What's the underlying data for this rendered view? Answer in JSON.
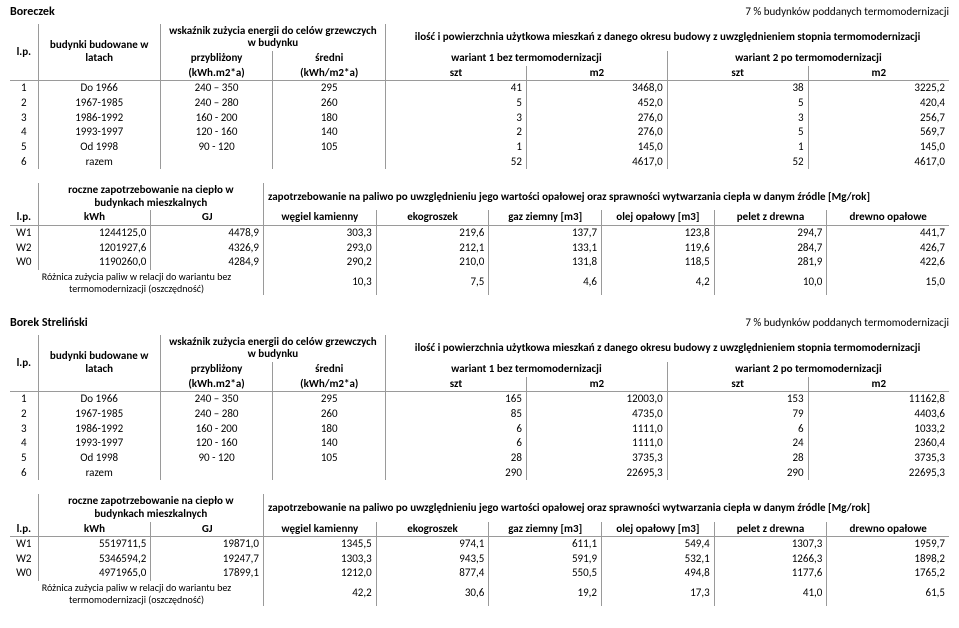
{
  "sections": [
    {
      "name": "Boreczek",
      "subtitle": "7 % budynków poddanych termomodernizacji",
      "table1": {
        "header_top_left": "budynki budowane w latach",
        "header_lp": "l.p.",
        "header_wsk": "wskaźnik zużycia energii do celów grzewczych w budynku",
        "header_ilosc": "ilość i powierzchnia użytkowa mieszkań z danego okresu budowy z uwzględnieniem stopnia termomodernizacji",
        "sub_przyb": "przybliżony",
        "sub_sredni": "średni",
        "sub_w1": "wariant 1 bez termomodernizacji",
        "sub_w2": "wariant 2 po termomodernizacji",
        "unit_kwh": "(kWh.m2*a)",
        "unit_kwhm": "(kWh/m2*a)",
        "unit_szt": "szt",
        "unit_m2": "m2",
        "rows": [
          {
            "lp": "1",
            "lat": "Do 1966",
            "przyb": "240 – 350",
            "sr": "295",
            "s1": "41",
            "m1": "3468,0",
            "s2": "38",
            "m2": "3225,2"
          },
          {
            "lp": "2",
            "lat": "1967-1985",
            "przyb": "240 – 280",
            "sr": "260",
            "s1": "5",
            "m1": "452,0",
            "s2": "5",
            "m2": "420,4"
          },
          {
            "lp": "3",
            "lat": "1986-1992",
            "przyb": "160 - 200",
            "sr": "180",
            "s1": "3",
            "m1": "276,0",
            "s2": "3",
            "m2": "256,7"
          },
          {
            "lp": "4",
            "lat": "1993-1997",
            "przyb": "120 - 160",
            "sr": "140",
            "s1": "2",
            "m1": "276,0",
            "s2": "5",
            "m2": "569,7"
          },
          {
            "lp": "5",
            "lat": "Od 1998",
            "przyb": "90 - 120",
            "sr": "105",
            "s1": "1",
            "m1": "145,0",
            "s2": "1",
            "m2": "145,0"
          },
          {
            "lp": "6",
            "lat": "razem",
            "przyb": "",
            "sr": "",
            "s1": "52",
            "m1": "4617,0",
            "s2": "52",
            "m2": "4617,0"
          }
        ]
      },
      "table2": {
        "h_roczne": "roczne zapotrzebowanie na ciepło w budynkach mieszkalnych",
        "h_zap": "zapotrzebowanie na paliwo po uwzględnieniu jego wartości opałowej oraz sprawności wytwarzania ciepła w danym źródle [Mg/rok]",
        "h_lp": "l.p.",
        "h_kwh": "kWh",
        "h_gj": "GJ",
        "h_wk": "węgiel kamienny",
        "h_eko": "ekogroszek",
        "h_gaz": "gaz ziemny [m3]",
        "h_ole": "olej opałowy [m3]",
        "h_pel": "pelet z drewna",
        "h_drw": "drewno opałowe",
        "rows": [
          {
            "lp": "W1",
            "kwh": "1244125,0",
            "gj": "4478,9",
            "wk": "303,3",
            "eko": "219,6",
            "gaz": "137,7",
            "ole": "123,8",
            "pel": "294,7",
            "drw": "441,7"
          },
          {
            "lp": "W2",
            "kwh": "1201927,6",
            "gj": "4326,9",
            "wk": "293,0",
            "eko": "212,1",
            "gaz": "133,1",
            "ole": "119,6",
            "pel": "284,7",
            "drw": "426,7"
          },
          {
            "lp": "W0",
            "kwh": "1190260,0",
            "gj": "4284,9",
            "wk": "290,2",
            "eko": "210,0",
            "gaz": "131,8",
            "ole": "118,5",
            "pel": "281,9",
            "drw": "422,6"
          }
        ],
        "diff_label": "Różnica zużycia paliw w relacji do wariantu bez termomodernizacji (oszczędność)",
        "diff": {
          "wk": "10,3",
          "eko": "7,5",
          "gaz": "4,6",
          "ole": "4,2",
          "pel": "10,0",
          "drw": "15,0"
        }
      }
    },
    {
      "name": "Borek Streliński",
      "subtitle": "7 % budynków poddanych termomodernizacji",
      "table1": {
        "header_top_left": "budynki budowane w latach",
        "header_lp": "l.p.",
        "header_wsk": "wskaźnik zużycia energii do celów grzewczych w budynku",
        "header_ilosc": "ilość i powierzchnia użytkowa mieszkań z danego okresu budowy z uwzględnieniem stopnia termomodernizacji",
        "sub_przyb": "przybliżony",
        "sub_sredni": "średni",
        "sub_w1": "wariant 1 bez termomodernizacji",
        "sub_w2": "wariant 2 po termomodernizacji",
        "unit_kwh": "(kWh.m2*a)",
        "unit_kwhm": "(kWh/m2*a)",
        "unit_szt": "szt",
        "unit_m2": "m2",
        "rows": [
          {
            "lp": "1",
            "lat": "Do 1966",
            "przyb": "240 – 350",
            "sr": "295",
            "s1": "165",
            "m1": "12003,0",
            "s2": "153",
            "m2": "11162,8"
          },
          {
            "lp": "2",
            "lat": "1967-1985",
            "przyb": "240 – 280",
            "sr": "260",
            "s1": "85",
            "m1": "4735,0",
            "s2": "79",
            "m2": "4403,6"
          },
          {
            "lp": "3",
            "lat": "1986-1992",
            "przyb": "160 - 200",
            "sr": "180",
            "s1": "6",
            "m1": "1111,0",
            "s2": "6",
            "m2": "1033,2"
          },
          {
            "lp": "4",
            "lat": "1993-1997",
            "przyb": "120 - 160",
            "sr": "140",
            "s1": "6",
            "m1": "1111,0",
            "s2": "24",
            "m2": "2360,4"
          },
          {
            "lp": "5",
            "lat": "Od 1998",
            "przyb": "90 - 120",
            "sr": "105",
            "s1": "28",
            "m1": "3735,3",
            "s2": "28",
            "m2": "3735,3"
          },
          {
            "lp": "6",
            "lat": "razem",
            "przyb": "",
            "sr": "",
            "s1": "290",
            "m1": "22695,3",
            "s2": "290",
            "m2": "22695,3"
          }
        ]
      },
      "table2": {
        "h_roczne": "roczne zapotrzebowanie na ciepło w budynkach mieszkalnych",
        "h_zap": "zapotrzebowanie na paliwo po uwzględnieniu jego wartości opałowej oraz sprawności wytwarzania ciepła w danym źródle [Mg/rok]",
        "h_lp": "l.p.",
        "h_kwh": "kWh",
        "h_gj": "GJ",
        "h_wk": "węgiel kamienny",
        "h_eko": "ekogroszek",
        "h_gaz": "gaz ziemny [m3]",
        "h_ole": "olej opałowy [m3]",
        "h_pel": "pelet z drewna",
        "h_drw": "drewno opałowe",
        "rows": [
          {
            "lp": "W1",
            "kwh": "5519711,5",
            "gj": "19871,0",
            "wk": "1345,5",
            "eko": "974,1",
            "gaz": "611,1",
            "ole": "549,4",
            "pel": "1307,3",
            "drw": "1959,7"
          },
          {
            "lp": "W2",
            "kwh": "5346594,2",
            "gj": "19247,7",
            "wk": "1303,3",
            "eko": "943,5",
            "gaz": "591,9",
            "ole": "532,1",
            "pel": "1266,3",
            "drw": "1898,2"
          },
          {
            "lp": "W0",
            "kwh": "4971965,0",
            "gj": "17899,1",
            "wk": "1212,0",
            "eko": "877,4",
            "gaz": "550,5",
            "ole": "494,8",
            "pel": "1177,6",
            "drw": "1765,2"
          }
        ],
        "diff_label": "Różnica zużycia paliw w relacji do wariantu bez termomodernizacji (oszczędność)",
        "diff": {
          "wk": "42,2",
          "eko": "30,6",
          "gaz": "19,2",
          "ole": "17,3",
          "pel": "41,0",
          "drw": "61,5"
        }
      }
    }
  ],
  "colwidths": {
    "t1": [
      "3%",
      "13%",
      "12%",
      "12%",
      "15%",
      "15%",
      "15%",
      "15%"
    ],
    "t2": [
      "3%",
      "12%",
      "12%",
      "12%",
      "12%",
      "12%",
      "12%",
      "12%",
      "13%"
    ]
  }
}
